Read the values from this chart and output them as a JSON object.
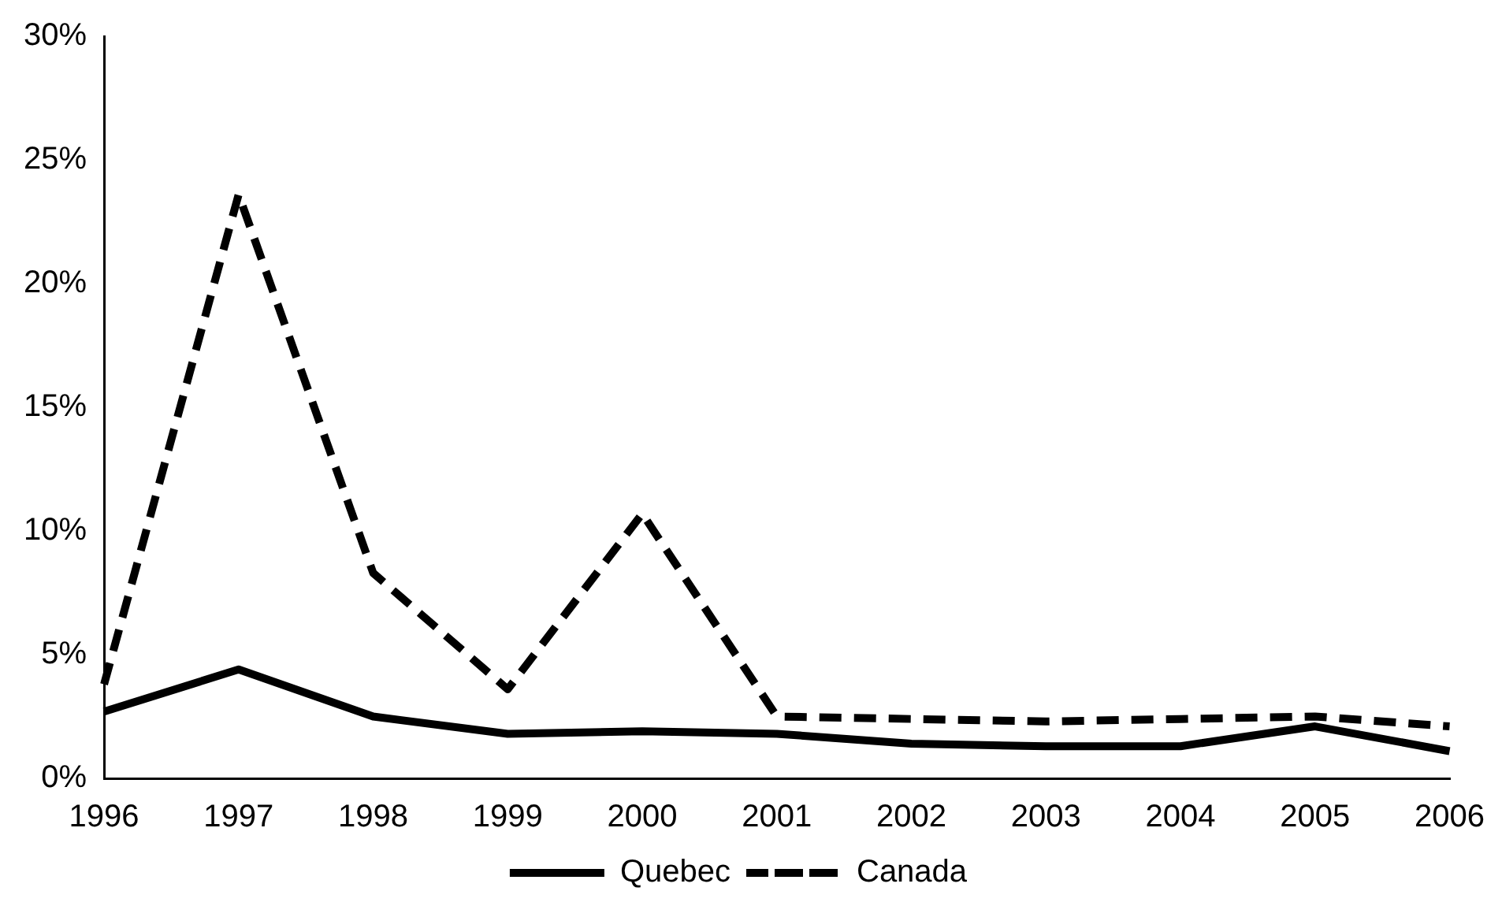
{
  "chart_data": {
    "type": "line",
    "categories": [
      "1996",
      "1997",
      "1998",
      "1999",
      "2000",
      "2001",
      "2002",
      "2003",
      "2004",
      "2005",
      "2006"
    ],
    "series": [
      {
        "name": "Quebec",
        "color": "#000000",
        "line_style": "solid",
        "values": [
          2.7,
          4.4,
          2.5,
          1.8,
          1.9,
          1.8,
          1.4,
          1.3,
          1.3,
          2.1,
          1.1
        ]
      },
      {
        "name": "Canada",
        "color": "#000000",
        "line_style": "dashed",
        "values": [
          3.8,
          23.6,
          8.3,
          3.6,
          10.7,
          2.5,
          2.4,
          2.3,
          2.4,
          2.5,
          2.1
        ]
      }
    ],
    "ylim": [
      0,
      30
    ],
    "yticks": [
      {
        "value": 0,
        "label": "0%"
      },
      {
        "value": 5,
        "label": "5%"
      },
      {
        "value": 10,
        "label": "10%"
      },
      {
        "value": 15,
        "label": "15%"
      },
      {
        "value": 20,
        "label": "20%"
      },
      {
        "value": 25,
        "label": "25%"
      },
      {
        "value": 30,
        "label": "30%"
      }
    ],
    "grid": false,
    "legend": "bottom",
    "marker": "none"
  }
}
